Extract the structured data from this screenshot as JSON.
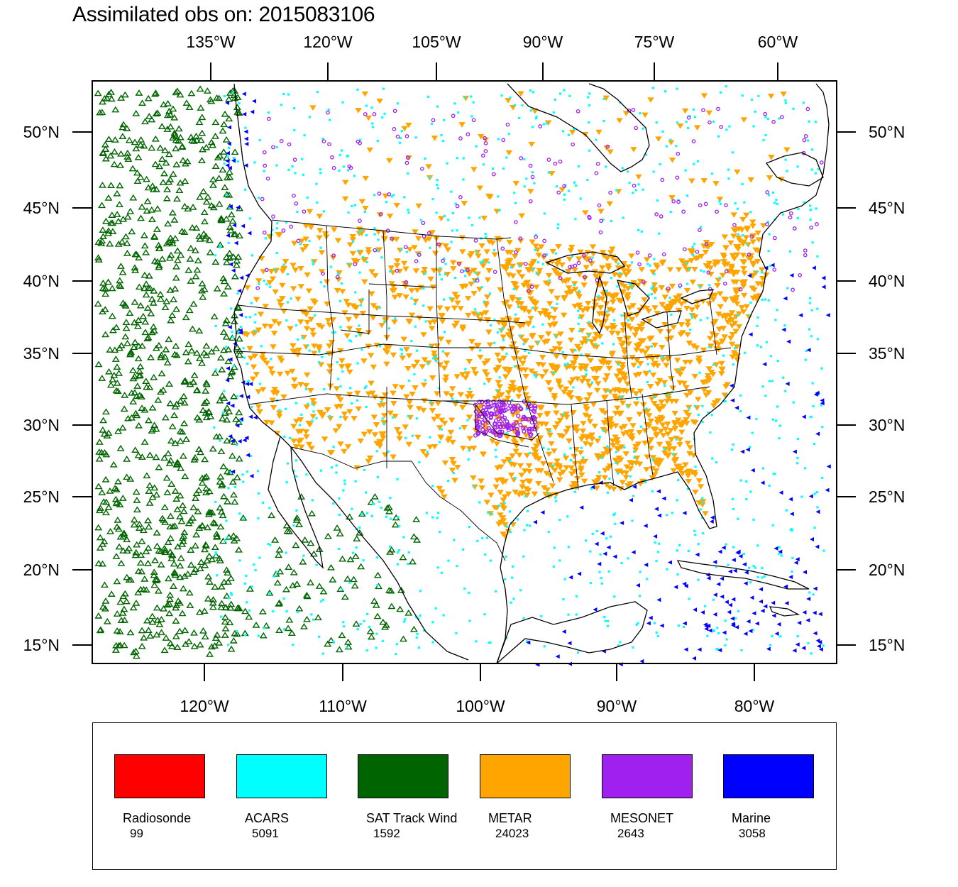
{
  "title": "Assimilated obs on: 2015083106",
  "axes": {
    "top_lon_labels": [
      "135°W",
      "120°W",
      "105°W",
      "90°W",
      "75°W",
      "60°W"
    ],
    "bottom_lon_labels": [
      "120°W",
      "110°W",
      "100°W",
      "90°W",
      "80°W"
    ],
    "lat_labels": [
      "50°N",
      "45°N",
      "40°N",
      "35°N",
      "30°N",
      "25°N",
      "20°N",
      "15°N"
    ]
  },
  "colors": {
    "Radiosonde": "#ff0000",
    "ACARS": "#00ffff",
    "SAT Track Wind": "#006400",
    "METAR": "#ffa500",
    "MESONET": "#a020f0",
    "Marine": "#0000ff"
  },
  "legend": [
    {
      "name": "Radiosonde",
      "count": "99",
      "color": "#ff0000"
    },
    {
      "name": "ACARS",
      "count": "5091",
      "color": "#00ffff"
    },
    {
      "name": "SAT Track Wind",
      "count": "1592",
      "color": "#006400"
    },
    {
      "name": "METAR",
      "count": "24023",
      "color": "#ffa500"
    },
    {
      "name": "MESONET",
      "count": "2643",
      "color": "#a020f0"
    },
    {
      "name": "Marine",
      "count": "3058",
      "color": "#0000ff"
    }
  ]
}
